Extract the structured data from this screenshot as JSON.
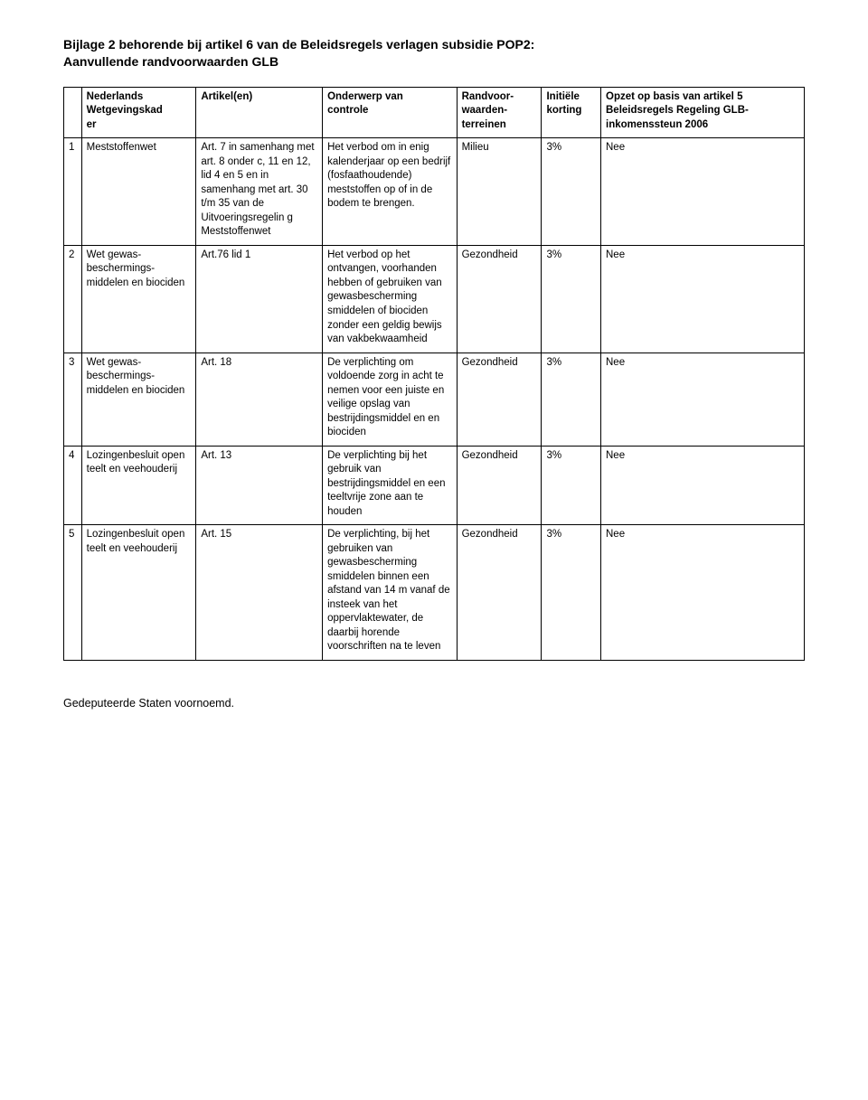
{
  "title": {
    "line1": "Bijlage 2 behorende bij artikel 6 van de Beleidsregels verlagen subsidie POP2:",
    "line2": "Aanvullende randvoorwaarden GLB"
  },
  "columns": {
    "c0": "",
    "c1_a": "Nederlands",
    "c1_b": "Wetgevingskad",
    "c1_c": "er",
    "c2": "Artikel(en)",
    "c3_a": "Onderwerp van",
    "c3_b": "controle",
    "c4_a": "Randvoor-",
    "c4_b": "waarden-",
    "c4_c": "terreinen",
    "c5_a": "Initiële",
    "c5_b": "korting",
    "c6_a": "Opzet op basis van artikel 5",
    "c6_b": "Beleidsregels Regeling GLB-",
    "c6_c": "inkomenssteun 2006"
  },
  "rows": [
    {
      "n": "1",
      "wet": "Meststoffenwet",
      "art": "Art. 7 in samenhang met art. 8 onder c, 11 en 12, lid 4 en 5 en in samenhang met art. 30 t/m 35 van de Uitvoeringsregelin g Meststoffenwet",
      "ond": "Het verbod om in enig kalenderjaar op een bedrijf (fosfaathoudende) meststoffen op of in de bodem te brengen.",
      "terr": "Milieu",
      "kort": "3%",
      "opz": "Nee"
    },
    {
      "n": "2",
      "wet": "Wet gewas-beschermings-middelen en biociden",
      "art": "Art.76 lid 1",
      "ond": "Het verbod op het ontvangen, voorhanden hebben of gebruiken van gewasbescherming smiddelen of biociden zonder een geldig bewijs van vakbekwaamheid",
      "terr": "Gezondheid",
      "kort": "3%",
      "opz": "Nee"
    },
    {
      "n": "3",
      "wet": "Wet gewas-beschermings-middelen en biociden",
      "art": "Art. 18",
      "ond": "De verplichting om voldoende zorg in acht te nemen voor een juiste en veilige opslag van bestrijdingsmiddel en en biociden",
      "terr": "Gezondheid",
      "kort": "3%",
      "opz": "Nee"
    },
    {
      "n": "4",
      "wet": "Lozingenbesluit open teelt en veehouderij",
      "art": "Art. 13",
      "ond": "De verplichting bij het gebruik van bestrijdingsmiddel en een teeltvrije zone aan te houden",
      "terr": "Gezondheid",
      "kort": "3%",
      "opz": "Nee"
    },
    {
      "n": "5",
      "wet": "Lozingenbesluit open teelt en veehouderij",
      "art": "Art. 15",
      "ond": "De verplichting, bij het gebruiken van gewasbescherming smiddelen binnen een afstand van 14 m vanaf de insteek van het oppervlaktewater, de daarbij horende voorschriften na te leven",
      "terr": "Gezondheid",
      "kort": "3%",
      "opz": "Nee"
    }
  ],
  "footer": "Gedeputeerde Staten voornoemd."
}
